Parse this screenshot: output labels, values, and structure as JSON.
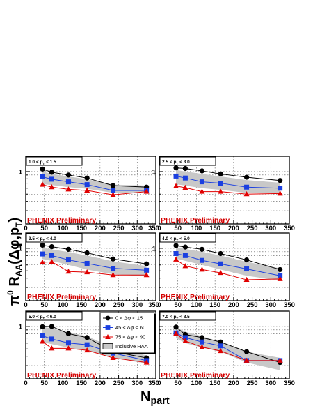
{
  "chart_data": {
    "type": "line",
    "xlabel": "N_part",
    "ylabel": "π0 R_AA(Δφ,p_T)",
    "xlim": [
      0,
      350
    ],
    "ylim": [
      0.2,
      1.6
    ],
    "y_scale": "log",
    "x_ticks": [
      "0",
      "50",
      "100",
      "150",
      "200",
      "250",
      "300",
      "350"
    ],
    "y_tick_label": "1",
    "grid": true,
    "watermark": "PHENIX Preliminary",
    "legend": {
      "placement": "panel-5 top-right",
      "entries": [
        "0 < Δφ < 15",
        "45 < Δφ < 60",
        "75 < Δφ < 90",
        "Inclusive RAA"
      ]
    },
    "x": [
      45,
      70,
      115,
      165,
      235,
      325
    ],
    "panels": [
      {
        "pt_label": "1.0 < p_T < 1.5",
        "series": [
          {
            "name": "0 < Δφ < 15",
            "color": "#000000",
            "marker": "circle",
            "values": [
              1.08,
              0.98,
              0.9,
              0.82,
              0.65,
              0.62
            ]
          },
          {
            "name": "45 < Δφ < 60",
            "color": "#1a3fe0",
            "marker": "square",
            "values": [
              0.85,
              0.79,
              0.73,
              0.67,
              0.56,
              0.56
            ]
          },
          {
            "name": "75 < Δφ < 90",
            "color": "#e00000",
            "marker": "triangle",
            "values": [
              0.67,
              0.62,
              0.58,
              0.56,
              0.49,
              0.54
            ]
          },
          {
            "name": "Inclusive RAA",
            "color": "#c8c8c8",
            "band": {
              "low": [
                0.68,
                0.66,
                0.62,
                0.59,
                0.52,
                0.53
              ],
              "high": [
                1.0,
                0.93,
                0.86,
                0.79,
                0.67,
                0.65
              ]
            }
          }
        ]
      },
      {
        "pt_label": "2.5 < p_T < 3.0",
        "series": [
          {
            "name": "0 < Δφ < 15",
            "color": "#000000",
            "marker": "circle",
            "values": [
              1.12,
              1.1,
              1.02,
              0.93,
              0.84,
              0.76
            ]
          },
          {
            "name": "45 < Δφ < 60",
            "color": "#1a3fe0",
            "marker": "square",
            "values": [
              0.87,
              0.82,
              0.73,
              0.7,
              0.62,
              0.6
            ]
          },
          {
            "name": "75 < Δφ < 90",
            "color": "#e00000",
            "marker": "triangle",
            "values": [
              0.64,
              0.61,
              0.54,
              0.54,
              0.5,
              0.51
            ]
          },
          {
            "name": "Inclusive RAA",
            "color": "#c8c8c8",
            "band": {
              "low": [
                0.68,
                0.65,
                0.6,
                0.57,
                0.52,
                0.51
              ],
              "high": [
                1.05,
                1.0,
                0.93,
                0.86,
                0.77,
                0.71
              ]
            }
          }
        ]
      },
      {
        "pt_label": "3.5 < p_T < 4.0",
        "series": [
          {
            "name": "0 < Δφ < 15",
            "color": "#000000",
            "marker": "circle",
            "values": [
              1.1,
              1.05,
              0.97,
              0.87,
              0.72,
              0.62
            ]
          },
          {
            "name": "45 < Δφ < 60",
            "color": "#1a3fe0",
            "marker": "square",
            "values": [
              0.84,
              0.8,
              0.7,
              0.63,
              0.54,
              0.51
            ]
          },
          {
            "name": "75 < Δφ < 90",
            "color": "#e00000",
            "marker": "triangle",
            "values": [
              0.65,
              0.66,
              0.49,
              0.48,
              0.44,
              0.44
            ]
          },
          {
            "name": "Inclusive RAA",
            "color": "#c8c8c8",
            "band": {
              "low": [
                0.72,
                0.68,
                0.6,
                0.52,
                0.45,
                0.42
              ],
              "high": [
                1.02,
                0.97,
                0.89,
                0.8,
                0.67,
                0.58
              ]
            }
          }
        ]
      },
      {
        "pt_label": "4.0 < p_T < 5.0",
        "series": [
          {
            "name": "0 < Δφ < 15",
            "color": "#000000",
            "marker": "circle",
            "values": [
              1.09,
              1.04,
              0.97,
              0.85,
              0.7,
              0.52
            ]
          },
          {
            "name": "45 < Δφ < 60",
            "color": "#1a3fe0",
            "marker": "square",
            "values": [
              0.85,
              0.8,
              0.69,
              0.62,
              0.53,
              0.43
            ]
          },
          {
            "name": "75 < Δφ < 90",
            "color": "#e00000",
            "marker": "triangle",
            "values": [
              0.71,
              0.58,
              0.52,
              0.47,
              0.38,
              0.39
            ]
          },
          {
            "name": "Inclusive RAA",
            "color": "#c8c8c8",
            "band": {
              "low": [
                0.73,
                0.68,
                0.6,
                0.52,
                0.43,
                0.37
              ],
              "high": [
                1.03,
                0.98,
                0.9,
                0.8,
                0.66,
                0.54
              ]
            }
          }
        ]
      },
      {
        "pt_label": "5.0 < p_T < 6.0",
        "series": [
          {
            "name": "0 < Δφ < 15",
            "color": "#000000",
            "marker": "circle",
            "values": [
              0.99,
              1.0,
              0.8,
              0.71,
              0.46,
              0.38
            ]
          },
          {
            "name": "45 < Δφ < 60",
            "color": "#1a3fe0",
            "marker": "square",
            "values": [
              0.75,
              0.68,
              0.6,
              0.57,
              0.44,
              0.35
            ]
          },
          {
            "name": "75 < Δφ < 90",
            "color": "#e00000",
            "marker": "triangle",
            "values": [
              0.63,
              0.51,
              0.51,
              0.48,
              0.38,
              0.33
            ]
          },
          {
            "name": "Inclusive RAA",
            "color": "#c8c8c8",
            "band": {
              "low": [
                0.62,
                0.58,
                0.52,
                0.48,
                0.38,
                0.32
              ],
              "high": [
                0.99,
                0.94,
                0.84,
                0.74,
                0.52,
                0.41
              ]
            }
          }
        ]
      },
      {
        "pt_label": "7.0 < p_T < 8.5",
        "series": [
          {
            "name": "0 < Δφ < 15",
            "color": "#000000",
            "marker": "circle",
            "values": [
              0.98,
              0.78,
              0.71,
              0.62,
              0.46,
              0.33
            ]
          },
          {
            "name": "45 < Δφ < 60",
            "color": "#1a3fe0",
            "marker": "square",
            "values": [
              0.82,
              0.71,
              0.62,
              0.55,
              0.35,
              0.35
            ]
          },
          {
            "name": "75 < Δφ < 90",
            "color": "#e00000",
            "marker": "triangle",
            "values": [
              0.8,
              0.64,
              0.53,
              0.47,
              0.35,
              0.35
            ]
          },
          {
            "name": "Inclusive RAA",
            "color": "#c8c8c8",
            "band": {
              "low": [
                0.7,
                0.6,
                0.52,
                0.46,
                0.33,
                0.26
              ],
              "high": [
                0.98,
                0.85,
                0.74,
                0.62,
                0.46,
                0.38
              ]
            }
          }
        ]
      }
    ]
  }
}
